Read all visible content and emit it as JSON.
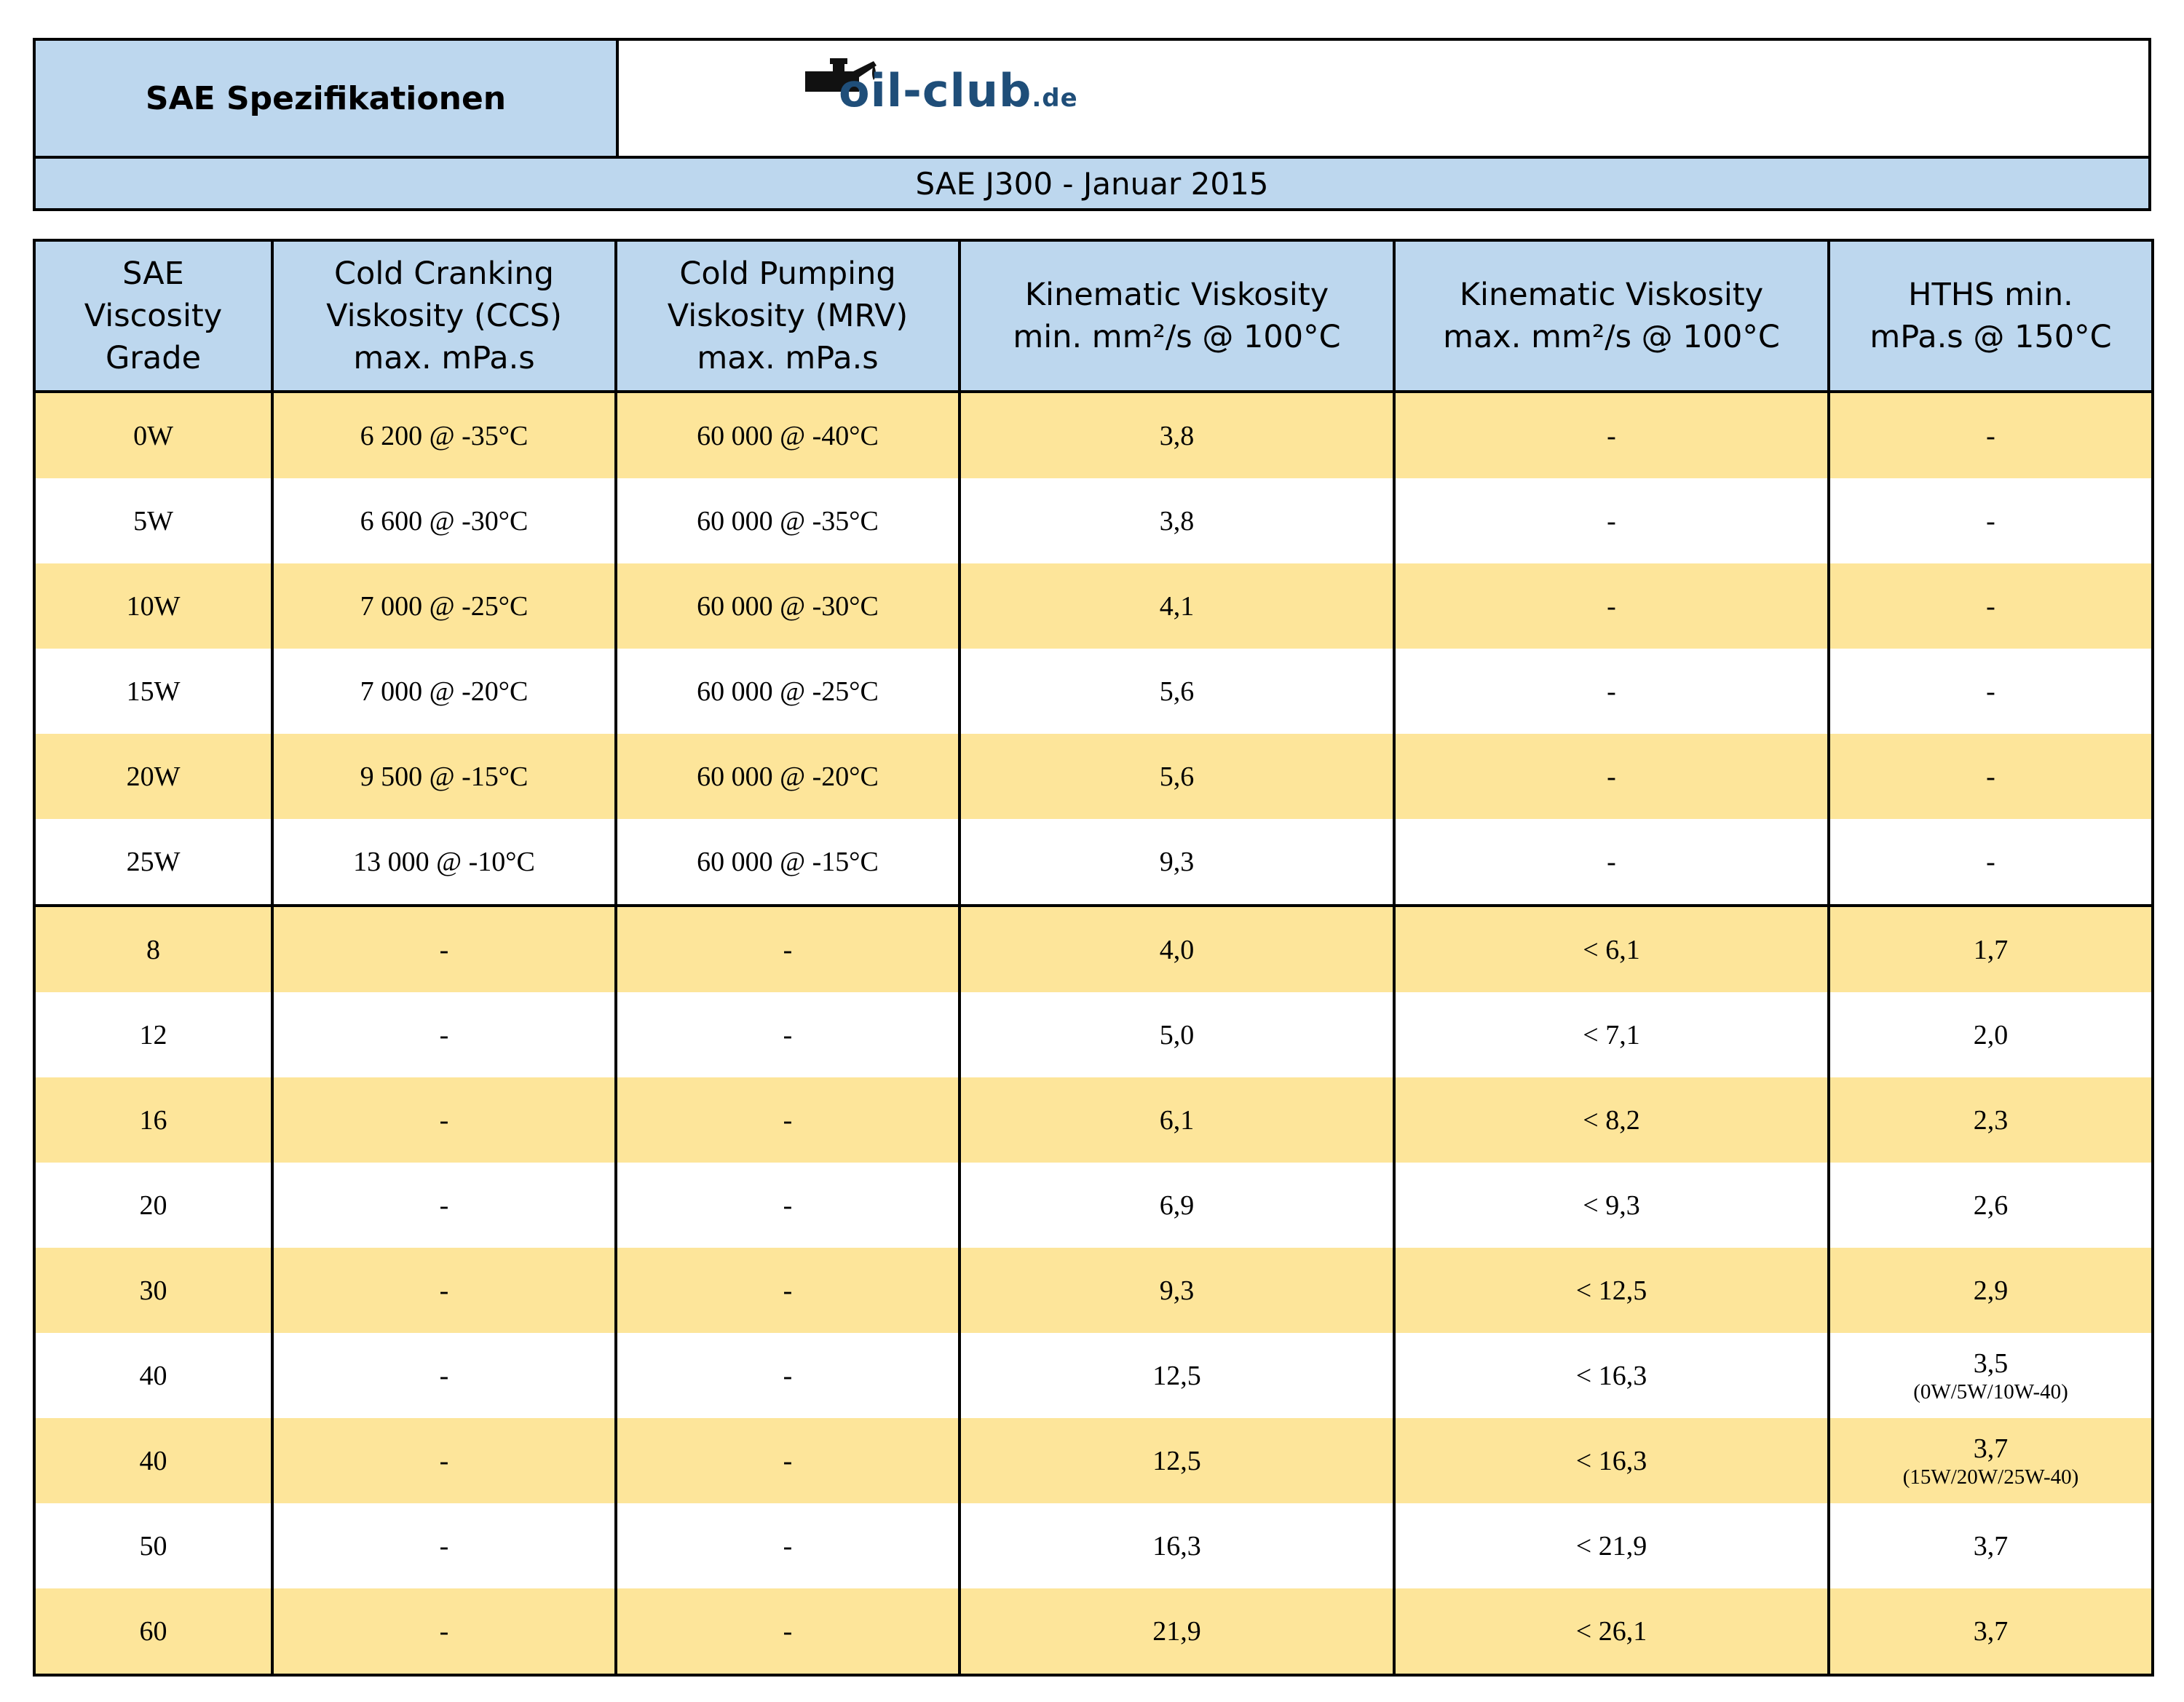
{
  "header": {
    "title": "SAE Spezifikationen",
    "logo": {
      "name": "oil-club",
      "tld": ".de",
      "icon": "oil-can-icon"
    },
    "subtitle": "SAE J300  -  Januar 2015"
  },
  "table": {
    "columns": [
      "SAE Viscosity Grade",
      "Cold Cranking Viskosity (CCS) max. mPa.s",
      "Cold Pumping Viskosity (MRV) max. mPa.s",
      "Kinematic Viskosity min. mm²/s @ 100°C",
      "Kinematic Viskosity max. mm²/s @ 100°C",
      "HTHS min. mPa.s @ 150°C"
    ],
    "column_lines": [
      [
        "SAE",
        "Viscosity",
        "Grade"
      ],
      [
        "Cold Cranking",
        "Viskosity (CCS)",
        "max. mPa.s"
      ],
      [
        "Cold Pumping",
        "Viskosity (MRV)",
        "max. mPa.s"
      ],
      [
        "Kinematic Viskosity",
        "min. mm²/s @ 100°C"
      ],
      [
        "Kinematic Viskosity",
        "max. mm²/s @ 100°C"
      ],
      [
        "HTHS min.",
        "mPa.s @ 150°C"
      ]
    ],
    "rows": [
      {
        "grade": "0W",
        "ccs": "6 200 @ -35°C",
        "mrv": "60 000 @ -40°C",
        "kv_min": "3,8",
        "kv_max": "-",
        "hths": "-",
        "hths_note": ""
      },
      {
        "grade": "5W",
        "ccs": "6 600 @ -30°C",
        "mrv": "60 000 @ -35°C",
        "kv_min": "3,8",
        "kv_max": "-",
        "hths": "-",
        "hths_note": ""
      },
      {
        "grade": "10W",
        "ccs": "7 000 @ -25°C",
        "mrv": "60 000 @ -30°C",
        "kv_min": "4,1",
        "kv_max": "-",
        "hths": "-",
        "hths_note": ""
      },
      {
        "grade": "15W",
        "ccs": "7 000 @ -20°C",
        "mrv": "60 000 @ -25°C",
        "kv_min": "5,6",
        "kv_max": "-",
        "hths": "-",
        "hths_note": ""
      },
      {
        "grade": "20W",
        "ccs": "9 500 @ -15°C",
        "mrv": "60 000 @ -20°C",
        "kv_min": "5,6",
        "kv_max": "-",
        "hths": "-",
        "hths_note": ""
      },
      {
        "grade": "25W",
        "ccs": "13 000 @ -10°C",
        "mrv": "60 000 @ -15°C",
        "kv_min": "9,3",
        "kv_max": "-",
        "hths": "-",
        "hths_note": ""
      },
      {
        "grade": "8",
        "ccs": "-",
        "mrv": "-",
        "kv_min": "4,0",
        "kv_max": "< 6,1",
        "hths": "1,7",
        "hths_note": ""
      },
      {
        "grade": "12",
        "ccs": "-",
        "mrv": "-",
        "kv_min": "5,0",
        "kv_max": "< 7,1",
        "hths": "2,0",
        "hths_note": ""
      },
      {
        "grade": "16",
        "ccs": "-",
        "mrv": "-",
        "kv_min": "6,1",
        "kv_max": "< 8,2",
        "hths": "2,3",
        "hths_note": ""
      },
      {
        "grade": "20",
        "ccs": "-",
        "mrv": "-",
        "kv_min": "6,9",
        "kv_max": "< 9,3",
        "hths": "2,6",
        "hths_note": ""
      },
      {
        "grade": "30",
        "ccs": "-",
        "mrv": "-",
        "kv_min": "9,3",
        "kv_max": "< 12,5",
        "hths": "2,9",
        "hths_note": ""
      },
      {
        "grade": "40",
        "ccs": "-",
        "mrv": "-",
        "kv_min": "12,5",
        "kv_max": "< 16,3",
        "hths": "3,5",
        "hths_note": "(0W/5W/10W-40)"
      },
      {
        "grade": "40",
        "ccs": "-",
        "mrv": "-",
        "kv_min": "12,5",
        "kv_max": "< 16,3",
        "hths": "3,7",
        "hths_note": "(15W/20W/25W-40)"
      },
      {
        "grade": "50",
        "ccs": "-",
        "mrv": "-",
        "kv_min": "16,3",
        "kv_max": "< 21,9",
        "hths": "3,7",
        "hths_note": ""
      },
      {
        "grade": "60",
        "ccs": "-",
        "mrv": "-",
        "kv_min": "21,9",
        "kv_max": "< 26,1",
        "hths": "3,7",
        "hths_note": ""
      }
    ]
  },
  "colors": {
    "header_blue": "#bdd7ee",
    "row_yellow": "#fde59a",
    "logo_blue": "#1f4e79"
  }
}
